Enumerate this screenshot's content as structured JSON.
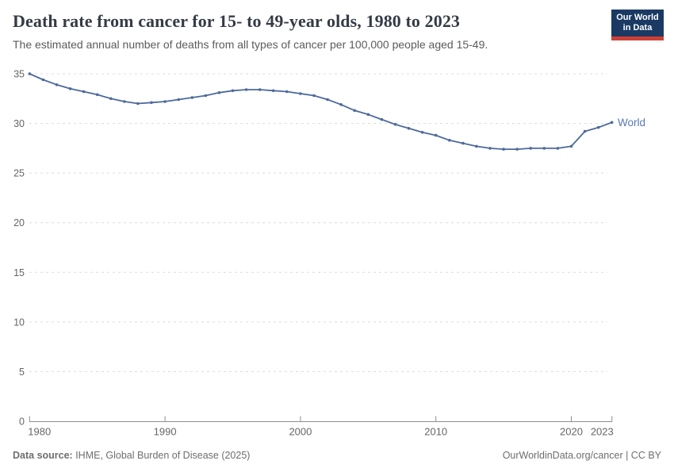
{
  "header": {
    "title": "Death rate from cancer for 15- to 49-year olds, 1980 to 2023",
    "subtitle": "The estimated annual number of deaths from all types of cancer per 100,000 people aged 15-49.",
    "logo": {
      "line1": "Our World",
      "line2": "in Data"
    }
  },
  "footer": {
    "source_label": "Data source:",
    "source_text": " IHME, Global Burden of Disease (2025)",
    "right_text": "OurWorldinData.org/cancer | CC BY"
  },
  "colors": {
    "title": "#353b46",
    "subtitle": "#5b5b5b",
    "line": "#4c6a9c",
    "entity_label": "#5878b0",
    "grid": "#dcdcdc",
    "axis": "#8f8f8f",
    "tick_text": "#666666",
    "footer_text": "#6e6e6e",
    "logo_bg": "#1a3a63",
    "logo_red": "#cf3f35"
  },
  "chart_data": {
    "type": "line",
    "title": "Death rate from cancer for 15- to 49-year olds, 1980 to 2023",
    "subtitle": "The estimated annual number of deaths from all types of cancer per 100,000 people aged 15-49.",
    "xlabel": "",
    "ylabel": "",
    "x": [
      1980,
      1981,
      1982,
      1983,
      1984,
      1985,
      1986,
      1987,
      1988,
      1989,
      1990,
      1991,
      1992,
      1993,
      1994,
      1995,
      1996,
      1997,
      1998,
      1999,
      2000,
      2001,
      2002,
      2003,
      2004,
      2005,
      2006,
      2007,
      2008,
      2009,
      2010,
      2011,
      2012,
      2013,
      2014,
      2015,
      2016,
      2017,
      2018,
      2019,
      2020,
      2021,
      2022,
      2023
    ],
    "series": [
      {
        "name": "World",
        "values": [
          35.0,
          34.4,
          33.9,
          33.5,
          33.2,
          32.9,
          32.5,
          32.2,
          32.0,
          32.1,
          32.2,
          32.4,
          32.6,
          32.8,
          33.1,
          33.3,
          33.4,
          33.4,
          33.3,
          33.2,
          33.0,
          32.8,
          32.4,
          31.9,
          31.3,
          30.9,
          30.4,
          29.9,
          29.5,
          29.1,
          28.8,
          28.3,
          28.0,
          27.7,
          27.5,
          27.4,
          27.4,
          27.5,
          27.5,
          27.5,
          27.7,
          29.2,
          29.6,
          30.1
        ]
      }
    ],
    "ylim": [
      0,
      35
    ],
    "yticks": [
      0,
      5,
      10,
      15,
      20,
      25,
      30,
      35
    ],
    "xticks": [
      1980,
      1990,
      2000,
      2010,
      2020,
      2023
    ],
    "grid": "dashed-horizontal",
    "legend_position": "end-of-line",
    "markers": true
  }
}
